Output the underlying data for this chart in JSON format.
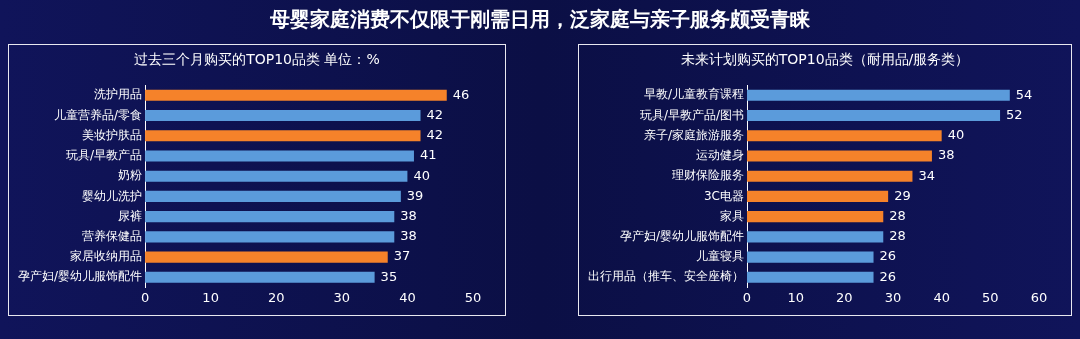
{
  "chart_data": [
    {
      "type": "bar",
      "orientation": "horizontal",
      "title": "母婴家庭消费不仅限于刚需日用，泛家庭与亲子服务颇受青睐",
      "subtitle": "过去三个月购买的TOP10品类 单位：%",
      "categories": [
        "洗护用品",
        "儿童营养品/零食",
        "美妆护肤品",
        "玩具/早教产品",
        "奶粉",
        "婴幼儿洗护",
        "尿裤",
        "营养保健品",
        "家居收纳用品",
        "孕产妇/婴幼儿服饰配件"
      ],
      "values": [
        46,
        42,
        42,
        41,
        40,
        39,
        38,
        38,
        37,
        35
      ],
      "colors": [
        "#f5822a",
        "#5b9bdb",
        "#f5822a",
        "#5b9bdb",
        "#5b9bdb",
        "#5b9bdb",
        "#5b9bdb",
        "#5b9bdb",
        "#f5822a",
        "#5b9bdb"
      ],
      "xlim": [
        0,
        50
      ],
      "xticks": [
        0,
        10,
        20,
        30,
        40,
        50
      ],
      "data_labels": true,
      "grid": false,
      "legend": false
    },
    {
      "type": "bar",
      "orientation": "horizontal",
      "subtitle": "未来计划购买的TOP10品类（耐用品/服务类）",
      "categories": [
        "早教/儿童教育课程",
        "玩具/早教产品/图书",
        "亲子/家庭旅游服务",
        "运动健身",
        "理财保险服务",
        "3C电器",
        "家具",
        "孕产妇/婴幼儿服饰配件",
        "儿童寝具",
        "出行用品（推车、安全座椅）"
      ],
      "values": [
        54,
        52,
        40,
        38,
        34,
        29,
        28,
        28,
        26,
        26
      ],
      "colors": [
        "#5b9bdb",
        "#5b9bdb",
        "#f5822a",
        "#f5822a",
        "#f5822a",
        "#f5822a",
        "#f5822a",
        "#5b9bdb",
        "#5b9bdb",
        "#5b9bdb"
      ],
      "xlim": [
        0,
        60
      ],
      "xticks": [
        0,
        10,
        20,
        30,
        40,
        50,
        60
      ],
      "data_labels": true,
      "grid": false,
      "legend": false
    }
  ]
}
